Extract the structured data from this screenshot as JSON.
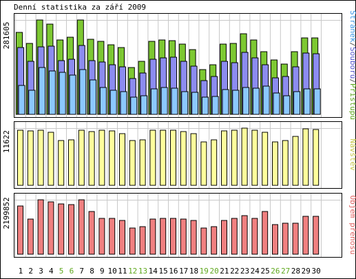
{
  "chart_data": {
    "title": "Denní statistika za září 2009",
    "days": [
      "1",
      "2",
      "3",
      "4",
      "5",
      "6",
      "7",
      "8",
      "9",
      "10",
      "11",
      "12",
      "13",
      "14",
      "15",
      "16",
      "17",
      "18",
      "19",
      "20",
      "21",
      "22",
      "23",
      "24",
      "25",
      "26",
      "27",
      "28",
      "29",
      "30"
    ],
    "weekend_days": [
      "5",
      "6",
      "12",
      "13",
      "19",
      "20",
      "26",
      "27"
    ],
    "colors": {
      "frame": "#000000",
      "grid": "#c8c8c8",
      "weekday_label": "#000000",
      "weekend_label": "#5fa81e",
      "pristupu": "#7dc832",
      "souboru": "#8c8cf0",
      "stranek": "#8cc8ff",
      "navstev": "#ffff9c",
      "objem": "#f08080",
      "legend_pristupu": "#5fa81e",
      "legend_souboru": "#5555cc",
      "legend_stranek": "#3a96e6",
      "legend_sep": "#555555",
      "legend_navstev": "#c8c84a",
      "legend_objem": "#e06464"
    },
    "charts": [
      {
        "type": "bar",
        "ylabel": "281605",
        "ylim": [
          0,
          281605
        ],
        "series": [
          {
            "name": "Přístupů",
            "values": [
              244000,
              212000,
              281000,
              270000,
              222000,
              231000,
              281000,
              225000,
              218000,
              208000,
              199000,
              140000,
              159000,
              217000,
              221000,
              219000,
              210000,
              193000,
              133000,
              149000,
              210000,
              212000,
              240000,
              222000,
              187000,
              162000,
              150000,
              187000,
              229000,
              228000
            ]
          },
          {
            "name": "Souborů",
            "values": [
              200000,
              159000,
              202000,
              204000,
              161000,
              165000,
              206000,
              160000,
              157000,
              147000,
              142000,
              107000,
              124000,
              165000,
              168000,
              170000,
              159000,
              144000,
              101000,
              113000,
              158000,
              154000,
              185000,
              169000,
              147000,
              108000,
              113000,
              141000,
              182000,
              180000
            ]
          },
          {
            "name": "Stránek",
            "values": [
              86000,
              71000,
              140000,
              129000,
              125000,
              118000,
              134000,
              102000,
              80000,
              71000,
              68000,
              51000,
              56000,
              77000,
              81000,
              79000,
              67000,
              66000,
              52000,
              53000,
              75000,
              71000,
              81000,
              79000,
              84000,
              63000,
              55000,
              67000,
              77000,
              76000
            ]
          }
        ],
        "legend": [
          "Stránek",
          "Souborů",
          "Přístupů"
        ]
      },
      {
        "type": "bar",
        "ylabel": "11622",
        "ylim": [
          0,
          11622
        ],
        "series": [
          {
            "name": "Návštěv",
            "values": [
              11213,
              11064,
              11213,
              10841,
              9057,
              9281,
              11139,
              10990,
              11213,
              11064,
              10470,
              9057,
              9281,
              11139,
              11213,
              11139,
              10990,
              10470,
              8834,
              9281,
              11064,
              11139,
              11622,
              11213,
              10767,
              8834,
              9057,
              9875,
              11436,
              11361
            ]
          }
        ],
        "legend": [
          "Návštěv"
        ]
      },
      {
        "type": "bar",
        "ylabel": "2199852",
        "ylim": [
          0,
          2199852
        ],
        "series": [
          {
            "name": "Objem přenosu",
            "values": [
              1936000,
              1431000,
              2200000,
              2112000,
              2024000,
              2002000,
              2200000,
              1738000,
              1452000,
              1452000,
              1364000,
              1056000,
              1122000,
              1430000,
              1452000,
              1452000,
              1408000,
              1364000,
              1056000,
              1122000,
              1364000,
              1452000,
              1562000,
              1452000,
              1716000,
              1188000,
              1254000,
              1254000,
              1518000,
              1518000
            ]
          }
        ],
        "legend": [
          "Objem přenosu"
        ]
      }
    ]
  }
}
